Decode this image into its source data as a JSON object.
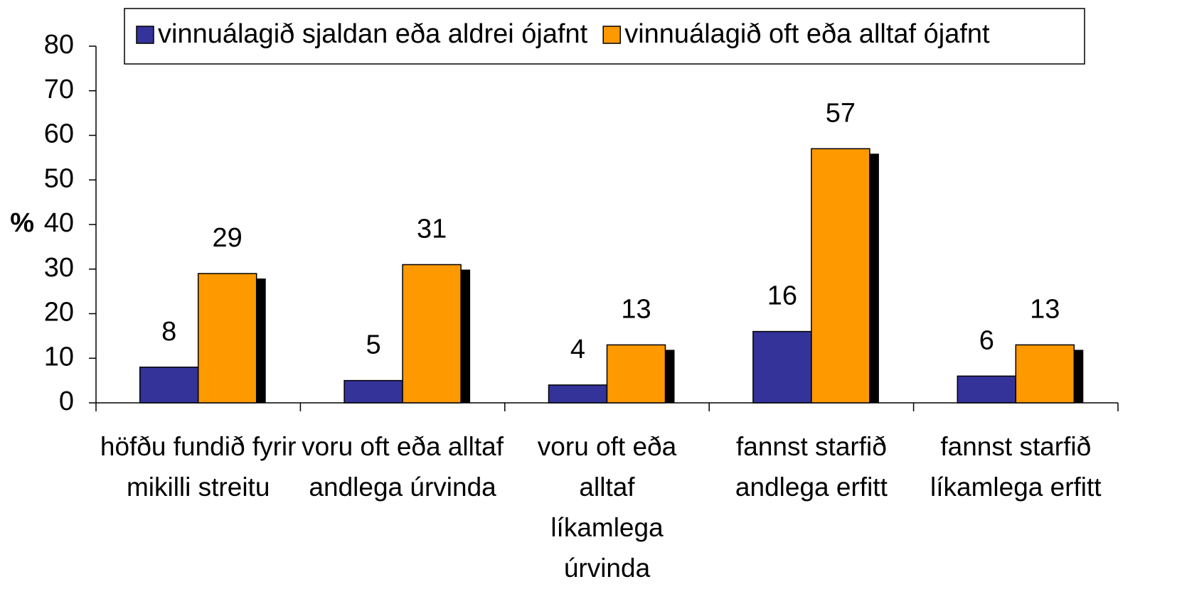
{
  "chart_data": {
    "type": "bar",
    "ylabel": "%",
    "categories": [
      "höfðu fundið fyrir mikilli streitu",
      "voru oft eða alltaf andlega úrvinda",
      "voru oft eða alltaf líkamlega úrvinda",
      "fannst starfið andlega erfitt",
      "fannst starfið líkamlega erfitt"
    ],
    "series": [
      {
        "name": "vinnuálagið sjaldan eða aldrei ójafnt",
        "color": "#333399",
        "values": [
          8,
          5,
          4,
          16,
          6
        ]
      },
      {
        "name": "vinnuálagið oft eða alltaf ójafnt",
        "color": "#ff9900",
        "values": [
          29,
          31,
          13,
          57,
          13
        ]
      }
    ],
    "ylim": [
      0,
      80
    ],
    "yticks": [
      0,
      10,
      20,
      30,
      40,
      50,
      60,
      70,
      80
    ],
    "legend": "top"
  }
}
